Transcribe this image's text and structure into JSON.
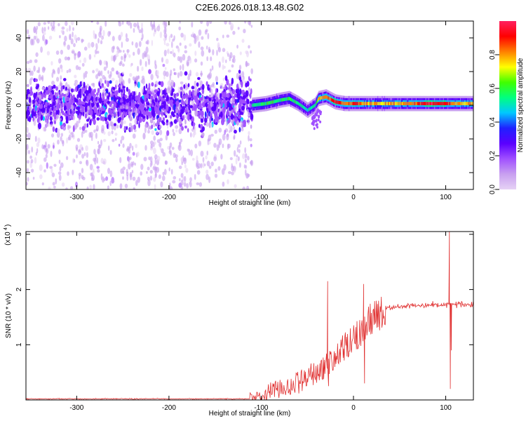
{
  "title": "C2E6.2026.018.13.48.G02",
  "colors": {
    "snr_line": "#e03030",
    "axis": "#000000",
    "colorbar": [
      "#e6d2f5",
      "#c8a0f0",
      "#a050ff",
      "#5a00ff",
      "#2020ff",
      "#00c8ff",
      "#00ff80",
      "#40ff00",
      "#ffff00",
      "#ff8000",
      "#ff0000",
      "#ff2060"
    ]
  },
  "chart_data": [
    {
      "type": "heatmap",
      "name": "spectrogram",
      "xlabel": "Height of straight line (km)",
      "ylabel": "Frequency (Hz)",
      "xlim": [
        -355,
        130
      ],
      "ylim": [
        -50,
        50
      ],
      "x_ticks": [
        -300,
        -200,
        -100,
        0,
        100
      ],
      "x_tick_labels": [
        "-300",
        "-200",
        "-100",
        "0",
        "100"
      ],
      "y_ticks": [
        -40,
        -20,
        0,
        20,
        40
      ],
      "y_tick_labels": [
        "-40",
        "-20",
        "0",
        "20",
        "40"
      ],
      "colorbar": {
        "label": "Normalized spectral amplitude",
        "range": [
          0,
          1
        ],
        "ticks": [
          0.0,
          0.2,
          0.4,
          0.6,
          0.8
        ],
        "tick_labels": [
          "0.0",
          "0.2",
          "0.4",
          "0.6",
          "0.8"
        ]
      },
      "noise_region": {
        "x_range": [
          -355,
          -110
        ],
        "freq_spread_hz": 50,
        "core_spread_hz": 10,
        "amplitude": [
          0.05,
          0.25
        ]
      },
      "signal_track": [
        {
          "x": -110,
          "f": 0,
          "amp": 0.55
        },
        {
          "x": -95,
          "f": 1,
          "amp": 0.6
        },
        {
          "x": -80,
          "f": 3,
          "amp": 0.55
        },
        {
          "x": -70,
          "f": 4,
          "amp": 0.6
        },
        {
          "x": -60,
          "f": 1,
          "amp": 0.55
        },
        {
          "x": -50,
          "f": -3,
          "amp": 0.5
        },
        {
          "x": -42,
          "f": 0,
          "amp": 0.55
        },
        {
          "x": -38,
          "f": 4,
          "amp": 0.75
        },
        {
          "x": -30,
          "f": 5,
          "amp": 0.8
        },
        {
          "x": -20,
          "f": 2,
          "amp": 0.95
        },
        {
          "x": -10,
          "f": 1,
          "amp": 0.8
        },
        {
          "x": 0,
          "f": 1,
          "amp": 0.9
        },
        {
          "x": 10,
          "f": 1,
          "amp": 0.8
        },
        {
          "x": 30,
          "f": 1,
          "amp": 0.75
        },
        {
          "x": 60,
          "f": 1,
          "amp": 0.8
        },
        {
          "x": 80,
          "f": 1,
          "amp": 0.95
        },
        {
          "x": 100,
          "f": 1,
          "amp": 0.9
        },
        {
          "x": 110,
          "f": 1,
          "amp": 0.8
        },
        {
          "x": 130,
          "f": 1,
          "amp": 0.75
        }
      ],
      "side_streak": {
        "x_range": [
          -45,
          -35
        ],
        "f_range": [
          -15,
          -2
        ]
      }
    },
    {
      "type": "line",
      "name": "snr",
      "xlabel": "Height of straight line (km)",
      "ylabel": "SNR (10 * v/v)",
      "y_scale_label": "(x10",
      "y_scale_exponent": "4",
      "xlim": [
        -355,
        130
      ],
      "ylim": [
        0,
        3.05
      ],
      "x_ticks": [
        -300,
        -200,
        -100,
        0,
        100
      ],
      "x_tick_labels": [
        "-300",
        "-200",
        "-100",
        "0",
        "100"
      ],
      "y_ticks": [
        1,
        2,
        3
      ],
      "y_tick_labels": [
        "1",
        "2",
        "3"
      ],
      "envelope": [
        {
          "x": -355,
          "y": 0.02
        },
        {
          "x": -115,
          "y": 0.02
        },
        {
          "x": -100,
          "y": 0.05
        },
        {
          "x": -90,
          "y": 0.2
        },
        {
          "x": -75,
          "y": 0.25
        },
        {
          "x": -60,
          "y": 0.35
        },
        {
          "x": -45,
          "y": 0.5
        },
        {
          "x": -30,
          "y": 0.65
        },
        {
          "x": -15,
          "y": 0.9
        },
        {
          "x": 0,
          "y": 1.15
        },
        {
          "x": 10,
          "y": 1.35
        },
        {
          "x": 20,
          "y": 1.55
        },
        {
          "x": 35,
          "y": 1.68
        },
        {
          "x": 60,
          "y": 1.71
        },
        {
          "x": 100,
          "y": 1.73
        },
        {
          "x": 115,
          "y": 1.74
        },
        {
          "x": 130,
          "y": 1.71
        }
      ],
      "spikes": [
        {
          "x": -28,
          "y": 2.15
        },
        {
          "x": -27,
          "y": 0.25
        },
        {
          "x": 11,
          "y": 2.1
        },
        {
          "x": 12,
          "y": 0.3
        },
        {
          "x": 104,
          "y": 3.05
        },
        {
          "x": 105,
          "y": 0.2
        },
        {
          "x": 106,
          "y": 0.9
        }
      ]
    }
  ]
}
